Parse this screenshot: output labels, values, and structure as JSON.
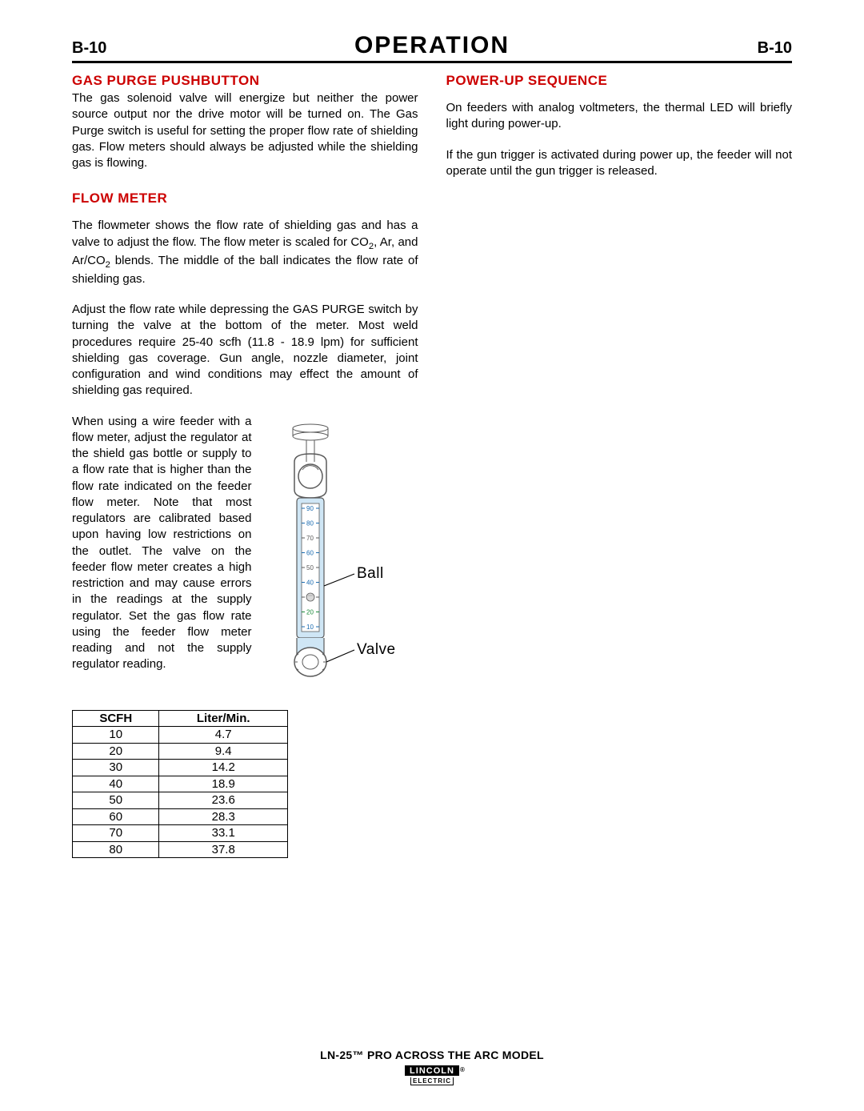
{
  "header": {
    "page_number_left": "B-10",
    "title": "OPERATION",
    "page_number_right": "B-10"
  },
  "left_column": {
    "gas_purge": {
      "heading": "GAS PURGE PUSHBUTTON",
      "para": "The gas solenoid valve will energize but neither the power source output nor the drive motor will be turned on. The Gas Purge switch is useful for setting the proper flow rate of shielding gas. Flow meters should always be adjusted while the shielding gas is flowing."
    },
    "flow_meter": {
      "heading": "FLOW METER",
      "para1_pre": "The flowmeter shows the flow rate of shielding gas and has a valve to adjust the flow. The flow meter is scaled for CO",
      "para1_mid": ", Ar, and Ar/CO",
      "para1_post": " blends. The middle of the ball indicates the flow rate of shielding gas.",
      "para2": "Adjust the flow rate while depressing the GAS PURGE switch by turning the valve at the bottom of the meter. Most weld procedures require 25-40 scfh (11.8 - 18.9 lpm) for sufficient shielding gas coverage. Gun angle, nozzle diameter, joint configuration and wind conditions may effect the amount of shielding gas required.",
      "para3": "When using a wire feeder with a flow meter, adjust the regulator at the shield gas bottle or supply to a flow rate that is higher than the flow rate indicated on the feeder flow meter. Note that most regulators are calibrated based upon having low restrictions on the outlet. The valve on the feeder flow meter creates a high restriction and may cause errors in the readings at the supply regulator. Set the gas flow rate using the feeder flow meter reading and not the supply regulator reading.",
      "diagram": {
        "label_ball": "Ball",
        "label_valve": "Valve",
        "scale_labels": [
          "90",
          "80",
          "70",
          "60",
          "50",
          "40",
          "30",
          "20",
          "10"
        ],
        "scale_colors": [
          "#1a6bb0",
          "#1a6bb0",
          "#5a5a5a",
          "#1a6bb0",
          "#5a5a5a",
          "#1a6bb0",
          "#5a5a5a",
          "#1a8a3a",
          "#1a6bb0"
        ],
        "ball_position_value": 30,
        "tube_color": "#cfe6f5",
        "scale_bg": "#ffffff",
        "outline_color": "#5a5a5a"
      },
      "table": {
        "columns": [
          "SCFH",
          "Liter/Min."
        ],
        "rows": [
          [
            "10",
            "4.7"
          ],
          [
            "20",
            "9.4"
          ],
          [
            "30",
            "14.2"
          ],
          [
            "40",
            "18.9"
          ],
          [
            "50",
            "23.6"
          ],
          [
            "60",
            "28.3"
          ],
          [
            "70",
            "33.1"
          ],
          [
            "80",
            "37.8"
          ]
        ]
      }
    }
  },
  "right_column": {
    "power_up": {
      "heading": "POWER-UP SEQUENCE",
      "para1": "On feeders with analog voltmeters, the thermal LED will briefly light during power-up.",
      "para2": "If the gun trigger is activated during power up, the feeder will not operate until the gun trigger is released."
    }
  },
  "footer": {
    "model_line": "LN-25™ PRO ACROSS THE ARC MODEL",
    "logo_top": "LINCOLN",
    "logo_bottom": "ELECTRIC"
  }
}
